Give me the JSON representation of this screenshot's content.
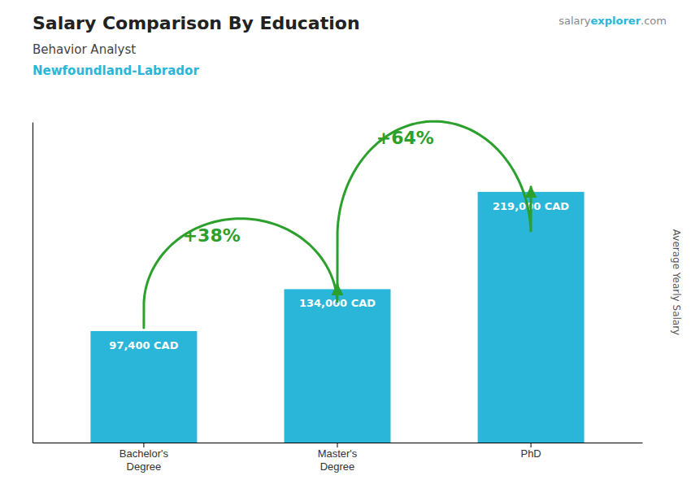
{
  "chart_data": {
    "type": "bar",
    "title": "Salary Comparison By Education",
    "subtitle": [
      "Behavior Analyst",
      "Newfoundland-Labrador"
    ],
    "y_label": "Average Yearly Salary",
    "categories": [
      "Bachelor's\nDegree",
      "Master's\nDegree",
      "PhD"
    ],
    "values": [
      97400,
      134000,
      219000
    ],
    "value_labels": [
      "97,400 CAD",
      "134,000 CAD",
      "219,000 CAD"
    ],
    "data_labels": true,
    "color": "#29b6d8",
    "ylim": [
      0,
      280000
    ],
    "tick_labels": "x",
    "grid": false,
    "annotations": [
      {
        "type": "arrow",
        "text": "+38%"
      },
      {
        "type": "arrow",
        "text": "+64%"
      },
      {
        "type": "text",
        "text": "salary"
      },
      {
        "type": "text",
        "text": "explorer"
      },
      {
        "type": "text",
        "text": ".com"
      }
    ]
  }
}
